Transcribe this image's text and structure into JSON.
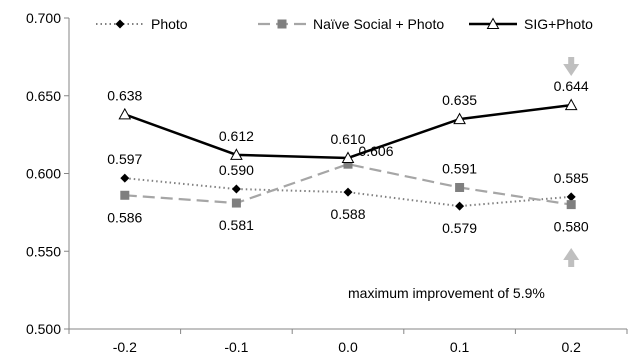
{
  "chart_data": {
    "type": "line",
    "x": [
      "-0.2",
      "-0.1",
      "0.0",
      "0.1",
      "0.2"
    ],
    "ylim": [
      0.5,
      0.7
    ],
    "yticks": [
      "0.500",
      "0.550",
      "0.600",
      "0.650",
      "0.700"
    ],
    "series": [
      {
        "name": "Photo",
        "style": "dotted",
        "marker": "diamond",
        "color": "#808080",
        "values": [
          0.597,
          0.59,
          0.588,
          0.579,
          0.585
        ],
        "labels": [
          "0.597",
          "0.590",
          "0.588",
          "0.579",
          "0.585"
        ]
      },
      {
        "name": "Naïve Social + Photo",
        "style": "dashed",
        "marker": "square",
        "color": "#a6a6a6",
        "values": [
          0.586,
          0.581,
          0.606,
          0.591,
          0.58
        ],
        "labels": [
          "0.586",
          "0.581",
          "0.606",
          "0.591",
          "0.580"
        ]
      },
      {
        "name": "SIG+Photo",
        "style": "solid",
        "marker": "triangle",
        "color": "#000000",
        "values": [
          0.638,
          0.612,
          0.61,
          0.635,
          0.644
        ],
        "labels": [
          "0.638",
          "0.612",
          "0.610",
          "0.635",
          "0.644"
        ]
      }
    ],
    "legend": "top",
    "annotation": "maximum improvement of 5.9%",
    "grid": false
  }
}
